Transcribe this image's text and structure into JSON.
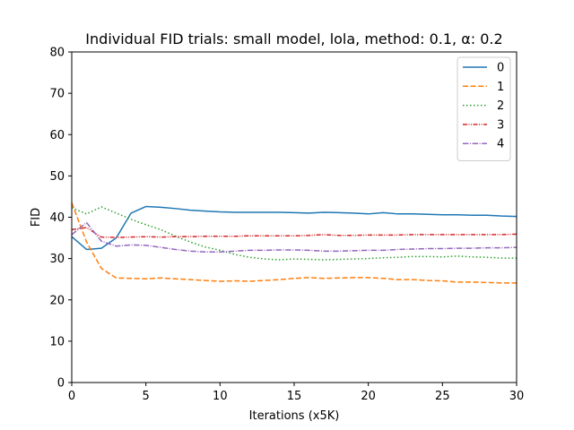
{
  "chart_data": {
    "type": "line",
    "title": "Individual FID trials: small model, lola, method: 0.1, α: 0.2",
    "xlabel": "Iterations (x5K)",
    "ylabel": "FID",
    "xlim": [
      0,
      30
    ],
    "ylim": [
      0,
      80
    ],
    "xticks": [
      0,
      5,
      10,
      15,
      20,
      25,
      30
    ],
    "yticks": [
      0,
      10,
      20,
      30,
      40,
      50,
      60,
      70,
      80
    ],
    "grid": false,
    "legend_position": "top-right",
    "x": [
      0,
      1,
      2,
      3,
      4,
      5,
      6,
      7,
      8,
      9,
      10,
      11,
      12,
      13,
      14,
      15,
      16,
      17,
      18,
      19,
      20,
      21,
      22,
      23,
      24,
      25,
      26,
      27,
      28,
      29,
      30
    ],
    "series": [
      {
        "name": "0",
        "color": "#1f77b4",
        "dash": "solid",
        "values": [
          35.3,
          32.2,
          32.5,
          35.0,
          41.0,
          42.6,
          42.4,
          42.1,
          41.7,
          41.5,
          41.3,
          41.2,
          41.2,
          41.2,
          41.2,
          41.1,
          41.0,
          41.2,
          41.1,
          41.0,
          40.8,
          41.1,
          40.8,
          40.8,
          40.7,
          40.6,
          40.6,
          40.5,
          40.5,
          40.3,
          40.2
        ]
      },
      {
        "name": "1",
        "color": "#ff7f0e",
        "dash": "dashed",
        "values": [
          43.5,
          34.0,
          27.6,
          25.3,
          25.2,
          25.1,
          25.3,
          25.1,
          24.9,
          24.7,
          24.5,
          24.6,
          24.5,
          24.7,
          24.9,
          25.2,
          25.4,
          25.2,
          25.3,
          25.4,
          25.4,
          25.2,
          24.9,
          24.9,
          24.7,
          24.6,
          24.3,
          24.3,
          24.2,
          24.1,
          24.1
        ]
      },
      {
        "name": "2",
        "color": "#2ca02c",
        "dash": "dotted",
        "values": [
          42.3,
          40.8,
          42.5,
          41.0,
          39.5,
          38.2,
          37.0,
          35.4,
          34.0,
          32.8,
          32.0,
          31.0,
          30.3,
          29.9,
          29.7,
          29.9,
          29.8,
          29.7,
          29.8,
          29.9,
          30.0,
          30.2,
          30.3,
          30.5,
          30.5,
          30.4,
          30.6,
          30.4,
          30.3,
          30.1,
          30.1
        ]
      },
      {
        "name": "3",
        "color": "#d62728",
        "dash": "dashdotdot",
        "values": [
          37.0,
          37.5,
          35.2,
          35.1,
          35.2,
          35.3,
          35.2,
          35.3,
          35.3,
          35.4,
          35.4,
          35.4,
          35.5,
          35.5,
          35.5,
          35.5,
          35.6,
          35.8,
          35.6,
          35.6,
          35.7,
          35.7,
          35.7,
          35.8,
          35.8,
          35.8,
          35.8,
          35.8,
          35.8,
          35.8,
          35.9
        ]
      },
      {
        "name": "4",
        "color": "#9467bd",
        "dash": "dashdot",
        "values": [
          35.8,
          38.7,
          34.2,
          33.0,
          33.3,
          33.2,
          32.7,
          32.2,
          31.8,
          31.6,
          31.6,
          31.8,
          32.0,
          32.0,
          32.1,
          32.1,
          32.0,
          31.8,
          31.8,
          31.9,
          32.0,
          32.0,
          32.2,
          32.3,
          32.4,
          32.4,
          32.5,
          32.5,
          32.6,
          32.6,
          32.7
        ]
      }
    ]
  }
}
